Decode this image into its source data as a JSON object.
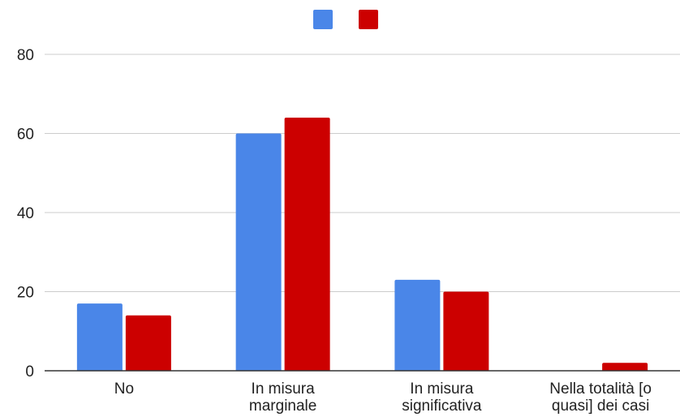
{
  "chart_data": {
    "type": "bar",
    "categories": [
      [
        "No"
      ],
      [
        "In misura",
        "marginale"
      ],
      [
        "In misura",
        "significativa"
      ],
      [
        "Nella totalità [o",
        "quasi] dei casi"
      ]
    ],
    "series": [
      {
        "color": "#4a86e8",
        "values": [
          17,
          60,
          23,
          0
        ]
      },
      {
        "color": "#cc0000",
        "values": [
          14,
          64,
          20,
          2
        ]
      }
    ],
    "yticks": [
      "0",
      "20",
      "40",
      "60",
      "80"
    ],
    "ylim": [
      0,
      80
    ],
    "grid": true,
    "legend_position": "top-center"
  }
}
